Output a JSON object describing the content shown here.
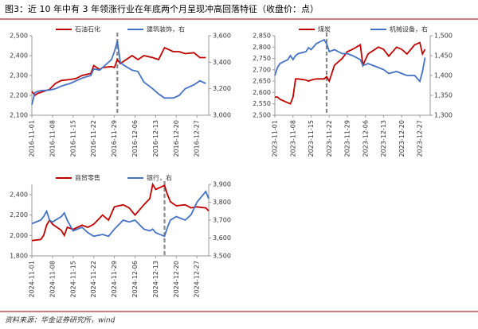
{
  "title": "图3：近 10 年中有 3 年领涨行业在年底两个月呈现冲高回落特征（收盘价：点）",
  "source": "资料来源：华金证券研究所，wind",
  "chart_data": [
    {
      "type": "line",
      "x": [
        "2016-11-01",
        "2016-11-02",
        "2016-11-03",
        "2016-11-04",
        "2016-11-07",
        "2016-11-09",
        "2016-11-11",
        "2016-11-14",
        "2016-11-16",
        "2016-11-18",
        "2016-11-21",
        "2016-11-22",
        "2016-11-24",
        "2016-11-25",
        "2016-11-28",
        "2016-11-29",
        "2016-11-30",
        "2016-12-01",
        "2016-12-02",
        "2016-12-05",
        "2016-12-07",
        "2016-12-09",
        "2016-12-12",
        "2016-12-14",
        "2016-12-16",
        "2016-12-19",
        "2016-12-21",
        "2016-12-23",
        "2016-12-26",
        "2016-12-28",
        "2016-12-30"
      ],
      "xlim": [
        "2016-11-01",
        "2016-12-31"
      ],
      "xticks": [
        "2016-11-01",
        "2016-11-08",
        "2016-11-15",
        "2016-11-22",
        "2016-11-29",
        "2016-12-06",
        "2016-12-13",
        "2016-12-20",
        "2016-12-27"
      ],
      "ylim": [
        2100,
        2500
      ],
      "yticks": [
        {
          "value": 2100,
          "label": "2,100"
        },
        {
          "value": 2200,
          "label": "2,200"
        },
        {
          "value": 2300,
          "label": "2,300"
        },
        {
          "value": 2400,
          "label": "2,400"
        },
        {
          "value": 2500,
          "label": "2,500"
        }
      ],
      "y2lim": [
        3000,
        3600
      ],
      "y2ticks": [
        {
          "value": 3000,
          "label": "3,000"
        },
        {
          "value": 3200,
          "label": "3,200"
        },
        {
          "value": 3400,
          "label": "3,400"
        },
        {
          "value": 3600,
          "label": "3,600"
        }
      ],
      "vline": "2016-11-30",
      "series": [
        {
          "name": "石油石化",
          "color": "#c00000",
          "values": [
            2220,
            2200,
            2210,
            2215,
            2230,
            2260,
            2275,
            2280,
            2285,
            2300,
            2310,
            2350,
            2330,
            2340,
            2345,
            2340,
            2380,
            2360,
            2370,
            2400,
            2380,
            2400,
            2390,
            2380,
            2440,
            2420,
            2420,
            2410,
            2415,
            2390,
            2390
          ]
        },
        {
          "name": "建筑装饰，右",
          "color": "#4472c4",
          "axis": "y2",
          "values": [
            3080,
            3170,
            3180,
            3185,
            3190,
            3200,
            3220,
            3240,
            3260,
            3280,
            3300,
            3350,
            3340,
            3360,
            3420,
            3480,
            3560,
            3400,
            3380,
            3340,
            3330,
            3250,
            3200,
            3160,
            3130,
            3130,
            3150,
            3200,
            3230,
            3260,
            3240
          ]
        }
      ]
    },
    {
      "type": "line",
      "x": [
        "2023-11-01",
        "2023-11-02",
        "2023-11-03",
        "2023-11-06",
        "2023-11-07",
        "2023-11-08",
        "2023-11-09",
        "2023-11-10",
        "2023-11-13",
        "2023-11-14",
        "2023-11-15",
        "2023-11-17",
        "2023-11-20",
        "2023-11-21",
        "2023-11-22",
        "2023-11-24",
        "2023-11-27",
        "2023-11-29",
        "2023-12-01",
        "2023-12-04",
        "2023-12-05",
        "2023-12-07",
        "2023-12-11",
        "2023-12-13",
        "2023-12-15",
        "2023-12-18",
        "2023-12-20",
        "2023-12-22",
        "2023-12-25",
        "2023-12-27",
        "2023-12-28",
        "2023-12-29"
      ],
      "xlim": [
        "2023-11-01",
        "2023-12-31"
      ],
      "xticks": [
        "2023-11-01",
        "2023-11-08",
        "2023-11-15",
        "2023-11-22",
        "2023-11-29",
        "2023-12-06",
        "2023-12-13",
        "2023-12-20",
        "2023-12-27"
      ],
      "ylim": [
        2500,
        2850
      ],
      "yticks": [
        {
          "value": 2500,
          "label": "2,500"
        },
        {
          "value": 2550,
          "label": "2,550"
        },
        {
          "value": 2600,
          "label": "2,600"
        },
        {
          "value": 2650,
          "label": "2,650"
        },
        {
          "value": 2700,
          "label": "2,700"
        },
        {
          "value": 2750,
          "label": "2,750"
        },
        {
          "value": 2800,
          "label": "2,800"
        },
        {
          "value": 2850,
          "label": "2,850"
        }
      ],
      "y2lim": [
        1300,
        1500
      ],
      "y2ticks": [
        {
          "value": 1300,
          "label": "1,300"
        },
        {
          "value": 1350,
          "label": "1,350"
        },
        {
          "value": 1400,
          "label": "1,400"
        },
        {
          "value": 1450,
          "label": "1,450"
        },
        {
          "value": 1500,
          "label": "1,500"
        }
      ],
      "vline": "2023-11-21",
      "series": [
        {
          "name": "煤炭",
          "color": "#c00000",
          "values": [
            2580,
            2580,
            2570,
            2555,
            2550,
            2580,
            2660,
            2660,
            2655,
            2650,
            2655,
            2660,
            2660,
            2670,
            2650,
            2720,
            2750,
            2780,
            2790,
            2810,
            2720,
            2770,
            2800,
            2790,
            2760,
            2800,
            2790,
            2770,
            2810,
            2820,
            2770,
            2790
          ]
        },
        {
          "name": "机械设备，右",
          "color": "#4472c4",
          "axis": "y2",
          "values": [
            1400,
            1420,
            1430,
            1440,
            1450,
            1440,
            1450,
            1455,
            1460,
            1470,
            1465,
            1480,
            1490,
            1480,
            1460,
            1465,
            1455,
            1455,
            1450,
            1440,
            1425,
            1430,
            1420,
            1415,
            1405,
            1410,
            1405,
            1400,
            1400,
            1385,
            1410,
            1445
          ]
        }
      ]
    },
    {
      "type": "line",
      "x": [
        "2024-11-01",
        "2024-11-04",
        "2024-11-05",
        "2024-11-06",
        "2024-11-07",
        "2024-11-08",
        "2024-11-11",
        "2024-11-12",
        "2024-11-13",
        "2024-11-15",
        "2024-11-18",
        "2024-11-20",
        "2024-11-22",
        "2024-11-25",
        "2024-11-27",
        "2024-11-29",
        "2024-12-02",
        "2024-12-04",
        "2024-12-06",
        "2024-12-09",
        "2024-12-11",
        "2024-12-12",
        "2024-12-13",
        "2024-12-16",
        "2024-12-17",
        "2024-12-18",
        "2024-12-20",
        "2024-12-23",
        "2024-12-25",
        "2024-12-27",
        "2024-12-30",
        "2024-12-31"
      ],
      "xlim": [
        "2024-11-01",
        "2024-12-31"
      ],
      "xticks": [
        "2024-11-01",
        "2024-11-08",
        "2024-11-15",
        "2024-11-22",
        "2024-11-29",
        "2024-12-06",
        "2024-12-13",
        "2024-12-20",
        "2024-12-27"
      ],
      "ylim": [
        1800,
        2500
      ],
      "yticks": [
        {
          "value": 1800,
          "label": "1,800"
        },
        {
          "value": 2000,
          "label": "2,000"
        },
        {
          "value": 2200,
          "label": "2,200"
        },
        {
          "value": 2400,
          "label": "2,400"
        }
      ],
      "y2lim": [
        3500,
        3900
      ],
      "y2ticks": [
        {
          "value": 3500,
          "label": "3,500"
        },
        {
          "value": 3600,
          "label": "3,600"
        },
        {
          "value": 3700,
          "label": "3,700"
        },
        {
          "value": 3800,
          "label": "3,800"
        },
        {
          "value": 3900,
          "label": "3,900"
        }
      ],
      "vline": "2024-12-16",
      "series": [
        {
          "name": "商贸零售",
          "color": "#c00000",
          "values": [
            1950,
            1960,
            2000,
            2100,
            2150,
            2110,
            2050,
            2000,
            2080,
            2060,
            2100,
            2080,
            2110,
            2200,
            2150,
            2280,
            2300,
            2270,
            2200,
            2300,
            2360,
            2500,
            2450,
            2490,
            2400,
            2330,
            2290,
            2300,
            2270,
            2280,
            2270,
            2240
          ]
        },
        {
          "name": "银行，右",
          "color": "#4472c4",
          "axis": "y2",
          "values": [
            3680,
            3700,
            3720,
            3750,
            3700,
            3690,
            3720,
            3740,
            3700,
            3640,
            3660,
            3630,
            3610,
            3620,
            3610,
            3650,
            3700,
            3690,
            3700,
            3650,
            3640,
            3650,
            3630,
            3610,
            3660,
            3700,
            3720,
            3700,
            3730,
            3800,
            3860,
            3820
          ]
        }
      ]
    }
  ]
}
